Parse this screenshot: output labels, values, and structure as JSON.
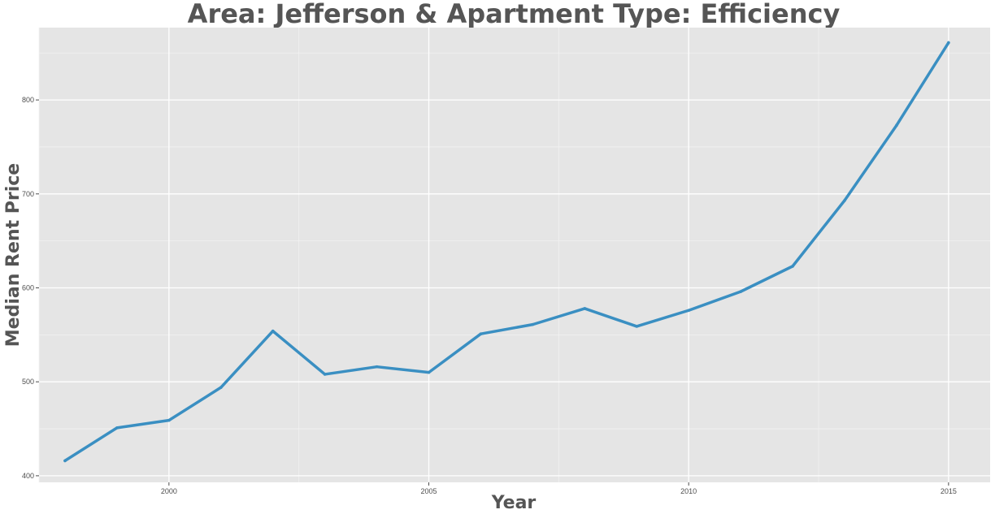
{
  "chart_data": {
    "type": "line",
    "title": "Area: Jefferson & Apartment Type: Efficiency",
    "xlabel": "Year",
    "ylabel": "Median Rent Price",
    "xlim": [
      1997.5,
      2015.8
    ],
    "ylim": [
      393,
      877
    ],
    "x_ticks": [
      2000,
      2005,
      2010,
      2015
    ],
    "y_ticks": [
      400,
      500,
      600,
      700,
      800
    ],
    "grid": true,
    "line_color": "#3a8fc2",
    "panel_color": "#e5e5e5",
    "x": [
      1998,
      1999,
      2000,
      2001,
      2002,
      2003,
      2004,
      2005,
      2006,
      2007,
      2008,
      2009,
      2010,
      2011,
      2012,
      2013,
      2014,
      2015
    ],
    "values": [
      416,
      451,
      459,
      494,
      554,
      508,
      516,
      510,
      551,
      561,
      578,
      559,
      576,
      596,
      623,
      693,
      773,
      861
    ]
  }
}
